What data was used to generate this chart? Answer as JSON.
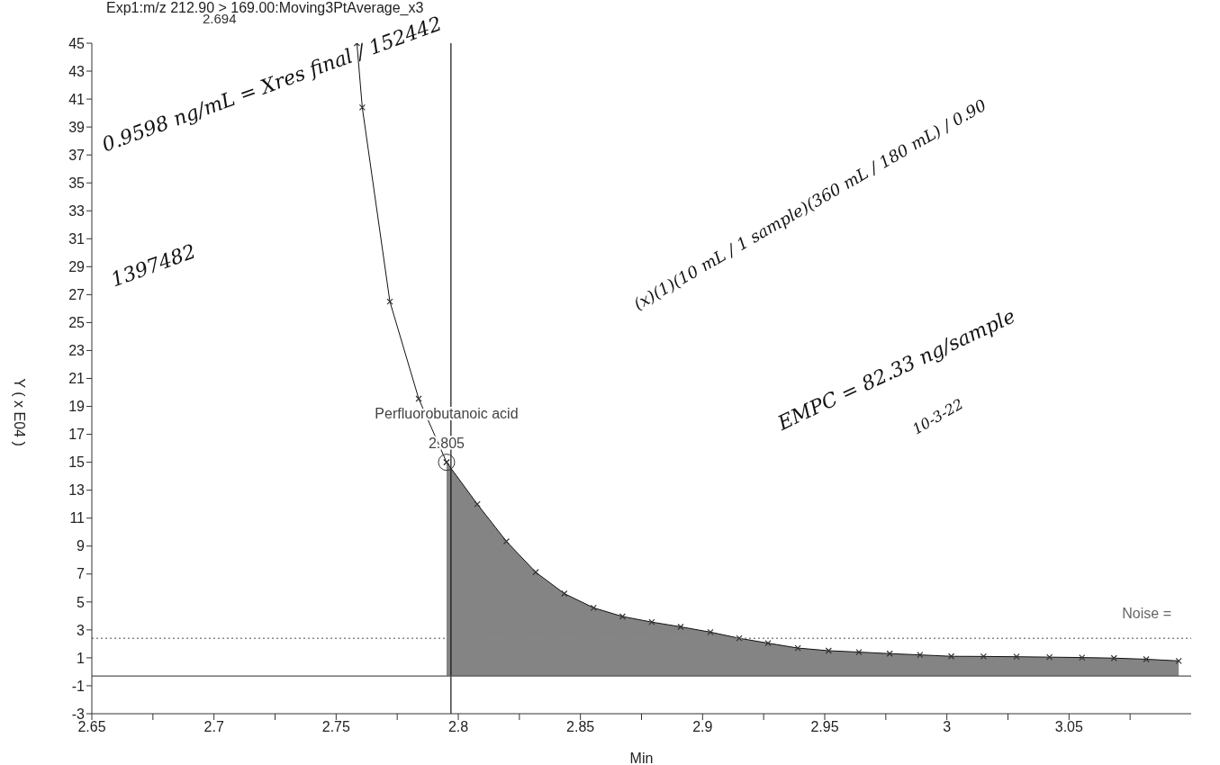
{
  "chart_data": {
    "type": "line",
    "title": "Exp1:m/z 212.90 > 169.00:Moving3PtAverage_x3",
    "xlabel": "Min",
    "ylabel": "Y ( x E04 )",
    "xlim": [
      2.65,
      3.1
    ],
    "ylim": [
      -3,
      45
    ],
    "xticks": [
      2.65,
      {
        "value": 2.675,
        "label": null
      },
      2.7,
      {
        "value": 2.725,
        "label": null
      },
      2.75,
      {
        "value": 2.775,
        "label": null
      },
      2.8,
      {
        "value": 2.825,
        "label": null
      },
      2.85,
      {
        "value": 2.875,
        "label": null
      },
      2.9,
      {
        "value": 2.925,
        "label": null
      },
      2.95,
      {
        "value": 2.975,
        "label": null
      },
      3,
      {
        "value": 3.025,
        "label": null
      },
      3.05,
      {
        "value": 3.075,
        "label": null
      }
    ],
    "yticks": [
      -3,
      -1,
      1,
      3,
      5,
      7,
      9,
      11,
      13,
      15,
      17,
      19,
      21,
      23,
      25,
      27,
      29,
      31,
      33,
      35,
      37,
      39,
      41,
      43,
      45
    ],
    "grid": false,
    "marker": "cross",
    "line_style": "solid",
    "series": [
      {
        "color": "#111111",
        "x": [
          2.7585,
          2.7607,
          2.772,
          2.7838,
          2.7952
        ],
        "values": [
          45,
          40.4,
          26.5,
          19.55,
          15.0
        ]
      },
      {
        "type": "area",
        "color": "#6e6e6e",
        "x": [
          2.7952,
          2.8078,
          2.8197,
          2.8317,
          2.8434,
          2.8554,
          2.8672,
          2.8792,
          2.891,
          2.9032,
          2.915,
          2.9268,
          2.939,
          2.9516,
          2.964,
          2.9766,
          2.989,
          3.0018,
          3.015,
          3.0285,
          3.042,
          3.0553,
          3.0684,
          3.0816,
          3.0949
        ],
        "values": [
          15.0,
          12.0,
          9.34,
          7.13,
          5.6,
          4.58,
          3.96,
          3.56,
          3.22,
          2.84,
          2.4,
          2.05,
          1.7,
          1.51,
          1.41,
          1.3,
          1.21,
          1.11,
          1.1,
          1.08,
          1.05,
          1.02,
          0.98,
          0.9,
          0.78
        ]
      }
    ],
    "ref_lines": [
      {
        "axis": "x",
        "value": 2.797,
        "color": "#111111",
        "line_style": "solid"
      },
      {
        "axis": "y",
        "value": 2.4,
        "label": "Noise =",
        "color": "#888888",
        "line_style": "dotted"
      },
      {
        "axis": "y",
        "value": -0.3,
        "color": "#555555",
        "line_style": "solid"
      }
    ],
    "annotations": [
      {
        "text": "Perfluorobutanoic acid",
        "x": 2.7952,
        "y": 15.0
      },
      {
        "text": "2.805",
        "x": 2.7952,
        "y": 15.0
      },
      "2.694",
      "0.9598 ng/mL = Xres final / 152442",
      "1397482",
      "(x)(1)(10 mL / 1 sample)(360 mL / 180 mL) / 0.90",
      "EMPC = 82.33 ng/sample",
      "10-3-22"
    ]
  }
}
